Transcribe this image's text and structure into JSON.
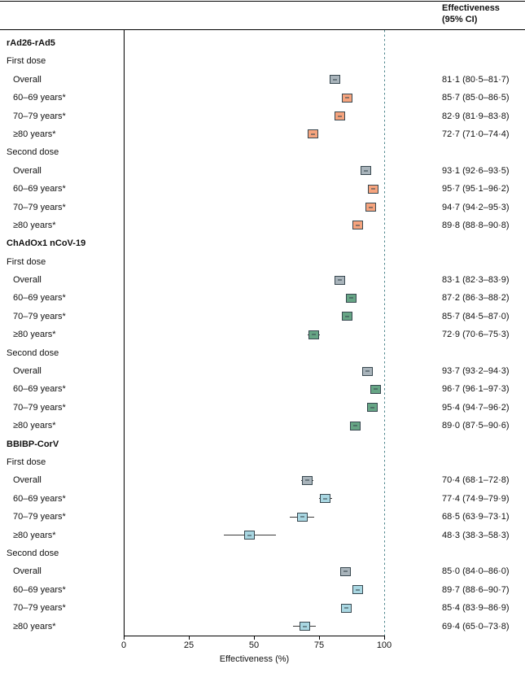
{
  "header": {
    "line1": "Effectiveness",
    "line2": "(95% CI)"
  },
  "axis": {
    "label": "Effectiveness (%)"
  },
  "colors": {
    "overall": "#a9b4bb",
    "rAd26-rAd5": "#f6a47e",
    "ChAdOx1 nCoV-19": "#66a585",
    "BBIBP-CorV": "#a9d7e2",
    "box_border": "#37474f",
    "reference_line": "#4e868d",
    "whisker": "#3a3a3a"
  },
  "chart_data": {
    "type": "forest",
    "title": "",
    "xlabel": "Effectiveness (%)",
    "xlim": [
      0,
      100
    ],
    "xticks": [
      0,
      25,
      50,
      75,
      100
    ],
    "reference_line_x": 100,
    "value_column_header": "Effectiveness (95% CI)",
    "groups": [
      {
        "name": "rAd26-rAd5",
        "sections": [
          {
            "name": "First dose",
            "rows": [
              {
                "label": "Overall",
                "estimate": 81.1,
                "lower": 80.5,
                "upper": 81.7,
                "ci_text": "81·1 (80·5–81·7)",
                "color_key": "overall"
              },
              {
                "label": "60–69 years*",
                "estimate": 85.7,
                "lower": 85.0,
                "upper": 86.5,
                "ci_text": "85·7 (85·0–86·5)",
                "color_key": "rAd26-rAd5"
              },
              {
                "label": "70–79 years*",
                "estimate": 82.9,
                "lower": 81.9,
                "upper": 83.8,
                "ci_text": "82·9 (81·9–83·8)",
                "color_key": "rAd26-rAd5"
              },
              {
                "label": "≥80 years*",
                "estimate": 72.7,
                "lower": 71.0,
                "upper": 74.4,
                "ci_text": "72·7 (71·0–74·4)",
                "color_key": "rAd26-rAd5"
              }
            ]
          },
          {
            "name": "Second dose",
            "rows": [
              {
                "label": "Overall",
                "estimate": 93.1,
                "lower": 92.6,
                "upper": 93.5,
                "ci_text": "93·1 (92·6–93·5)",
                "color_key": "overall"
              },
              {
                "label": "60–69 years*",
                "estimate": 95.7,
                "lower": 95.1,
                "upper": 96.2,
                "ci_text": "95·7 (95·1–96·2)",
                "color_key": "rAd26-rAd5"
              },
              {
                "label": "70–79 years*",
                "estimate": 94.7,
                "lower": 94.2,
                "upper": 95.3,
                "ci_text": "94·7 (94·2–95·3)",
                "color_key": "rAd26-rAd5"
              },
              {
                "label": "≥80 years*",
                "estimate": 89.8,
                "lower": 88.8,
                "upper": 90.8,
                "ci_text": "89·8 (88·8–90·8)",
                "color_key": "rAd26-rAd5"
              }
            ]
          }
        ]
      },
      {
        "name": "ChAdOx1 nCoV-19",
        "sections": [
          {
            "name": "First dose",
            "rows": [
              {
                "label": "Overall",
                "estimate": 83.1,
                "lower": 82.3,
                "upper": 83.9,
                "ci_text": "83·1 (82·3–83·9)",
                "color_key": "overall"
              },
              {
                "label": "60–69 years*",
                "estimate": 87.2,
                "lower": 86.3,
                "upper": 88.2,
                "ci_text": "87·2 (86·3–88·2)",
                "color_key": "ChAdOx1 nCoV-19"
              },
              {
                "label": "70–79 years*",
                "estimate": 85.7,
                "lower": 84.5,
                "upper": 87.0,
                "ci_text": "85·7 (84·5–87·0)",
                "color_key": "ChAdOx1 nCoV-19"
              },
              {
                "label": "≥80 years*",
                "estimate": 72.9,
                "lower": 70.6,
                "upper": 75.3,
                "ci_text": "72·9 (70·6–75·3)",
                "color_key": "ChAdOx1 nCoV-19"
              }
            ]
          },
          {
            "name": "Second dose",
            "rows": [
              {
                "label": "Overall",
                "estimate": 93.7,
                "lower": 93.2,
                "upper": 94.3,
                "ci_text": "93·7 (93·2–94·3)",
                "color_key": "overall"
              },
              {
                "label": "60–69 years*",
                "estimate": 96.7,
                "lower": 96.1,
                "upper": 97.3,
                "ci_text": "96·7 (96·1–97·3)",
                "color_key": "ChAdOx1 nCoV-19"
              },
              {
                "label": "70–79 years*",
                "estimate": 95.4,
                "lower": 94.7,
                "upper": 96.2,
                "ci_text": "95·4 (94·7–96·2)",
                "color_key": "ChAdOx1 nCoV-19"
              },
              {
                "label": "≥80 years*",
                "estimate": 89.0,
                "lower": 87.5,
                "upper": 90.6,
                "ci_text": "89·0 (87·5–90·6)",
                "color_key": "ChAdOx1 nCoV-19"
              }
            ]
          }
        ]
      },
      {
        "name": "BBIBP-CorV",
        "sections": [
          {
            "name": "First dose",
            "rows": [
              {
                "label": "Overall",
                "estimate": 70.4,
                "lower": 68.1,
                "upper": 72.8,
                "ci_text": "70·4 (68·1–72·8)",
                "color_key": "overall"
              },
              {
                "label": "60–69 years*",
                "estimate": 77.4,
                "lower": 74.9,
                "upper": 79.9,
                "ci_text": "77·4 (74·9–79·9)",
                "color_key": "BBIBP-CorV"
              },
              {
                "label": "70–79 years*",
                "estimate": 68.5,
                "lower": 63.9,
                "upper": 73.1,
                "ci_text": "68·5 (63·9–73·1)",
                "color_key": "BBIBP-CorV"
              },
              {
                "label": "≥80 years*",
                "estimate": 48.3,
                "lower": 38.3,
                "upper": 58.3,
                "ci_text": "48·3 (38·3–58·3)",
                "color_key": "BBIBP-CorV"
              }
            ]
          },
          {
            "name": "Second dose",
            "rows": [
              {
                "label": "Overall",
                "estimate": 85.0,
                "lower": 84.0,
                "upper": 86.0,
                "ci_text": "85·0 (84·0–86·0)",
                "color_key": "overall"
              },
              {
                "label": "60–69 years*",
                "estimate": 89.7,
                "lower": 88.6,
                "upper": 90.7,
                "ci_text": "89·7 (88·6–90·7)",
                "color_key": "BBIBP-CorV"
              },
              {
                "label": "70–79 years*",
                "estimate": 85.4,
                "lower": 83.9,
                "upper": 86.9,
                "ci_text": "85·4 (83·9–86·9)",
                "color_key": "BBIBP-CorV"
              },
              {
                "label": "≥80 years*",
                "estimate": 69.4,
                "lower": 65.0,
                "upper": 73.8,
                "ci_text": "69·4 (65·0–73·8)",
                "color_key": "BBIBP-CorV"
              }
            ]
          }
        ]
      }
    ]
  }
}
